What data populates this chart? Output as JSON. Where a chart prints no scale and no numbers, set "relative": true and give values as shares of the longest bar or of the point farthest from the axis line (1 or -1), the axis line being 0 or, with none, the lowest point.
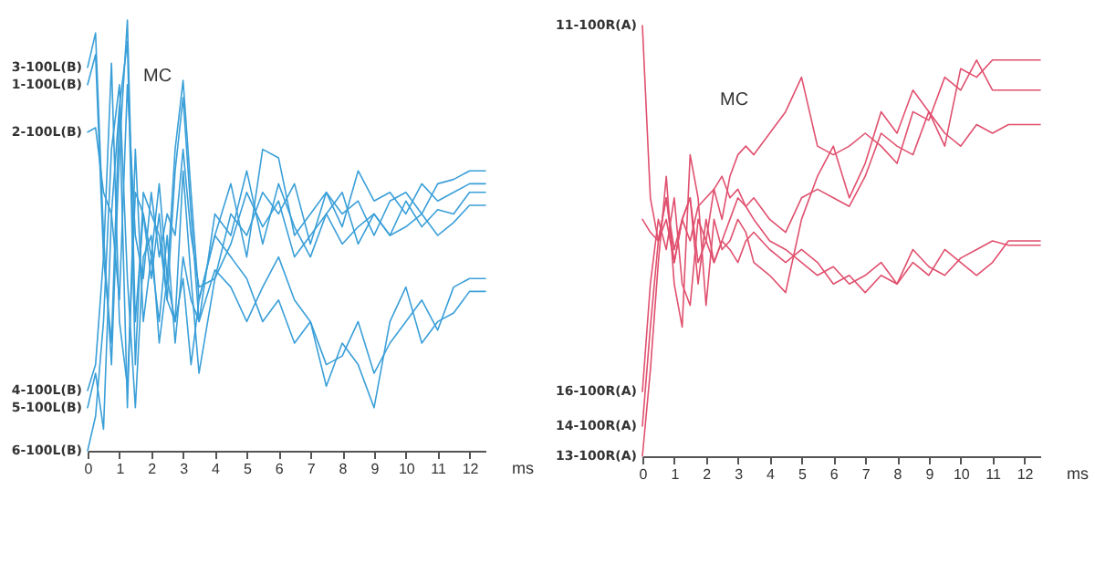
{
  "chart_data": [
    {
      "type": "line",
      "relative": true,
      "xlabel": "ms",
      "xlim": [
        0,
        12.5
      ],
      "xticks": [
        0,
        1,
        2,
        3,
        4,
        5,
        6,
        7,
        8,
        9,
        10,
        11,
        12
      ],
      "grid": false,
      "legend": false,
      "line_style": "solid",
      "annotations": [
        "MC"
      ],
      "x": [
        0,
        0.25,
        0.5,
        0.75,
        1,
        1.25,
        1.5,
        1.75,
        2,
        2.25,
        2.5,
        2.75,
        3,
        3.25,
        3.5,
        4,
        4.5,
        5,
        5.5,
        6,
        6.5,
        7,
        7.5,
        8,
        8.5,
        9,
        9.5,
        10,
        10.5,
        11,
        11.5,
        12,
        12.5
      ],
      "series": [
        {
          "name": "3-100L(B)",
          "color": "#3a9fd8",
          "values": [
            0.89,
            0.97,
            0.5,
            0.2,
            0.7,
            1.0,
            0.3,
            0.55,
            0.45,
            0.62,
            0.4,
            0.7,
            0.86,
            0.6,
            0.35,
            0.5,
            0.62,
            0.45,
            0.7,
            0.68,
            0.5,
            0.55,
            0.6,
            0.52,
            0.65,
            0.58,
            0.6,
            0.55,
            0.62,
            0.58,
            0.6,
            0.62,
            0.62
          ]
        },
        {
          "name": "1-100L(B)",
          "color": "#3a9fd8",
          "values": [
            0.85,
            0.92,
            0.45,
            0.25,
            0.8,
            0.95,
            0.2,
            0.6,
            0.55,
            0.5,
            0.35,
            0.65,
            0.82,
            0.55,
            0.3,
            0.55,
            0.5,
            0.65,
            0.48,
            0.62,
            0.52,
            0.45,
            0.55,
            0.6,
            0.48,
            0.55,
            0.5,
            0.58,
            0.52,
            0.56,
            0.55,
            0.6,
            0.6
          ]
        },
        {
          "name": "2-100L(B)",
          "color": "#3a9fd8",
          "values": [
            0.74,
            0.75,
            0.6,
            0.55,
            0.35,
            0.85,
            0.5,
            0.4,
            0.6,
            0.45,
            0.55,
            0.5,
            0.7,
            0.5,
            0.38,
            0.4,
            0.48,
            0.6,
            0.52,
            0.58,
            0.45,
            0.5,
            0.55,
            0.48,
            0.52,
            0.55,
            0.5,
            0.52,
            0.55,
            0.5,
            0.53,
            0.57,
            0.57
          ]
        },
        {
          "name": "4-100L(B)",
          "color": "#3a9fd8",
          "values": [
            0.14,
            0.2,
            0.45,
            0.9,
            0.3,
            0.15,
            0.6,
            0.55,
            0.4,
            0.55,
            0.35,
            0.3,
            0.4,
            0.2,
            0.35,
            0.5,
            0.45,
            0.4,
            0.3,
            0.35,
            0.25,
            0.3,
            0.2,
            0.22,
            0.3,
            0.18,
            0.25,
            0.3,
            0.35,
            0.28,
            0.38,
            0.4,
            0.4
          ]
        },
        {
          "name": "5-100L(B)",
          "color": "#3a9fd8",
          "values": [
            0.1,
            0.18,
            0.05,
            0.55,
            0.8,
            0.1,
            0.7,
            0.3,
            0.45,
            0.3,
            0.5,
            0.25,
            0.45,
            0.35,
            0.3,
            0.42,
            0.38,
            0.3,
            0.38,
            0.45,
            0.35,
            0.3,
            0.15,
            0.25,
            0.2,
            0.1,
            0.3,
            0.38,
            0.25,
            0.3,
            0.32,
            0.37,
            0.37
          ]
        },
        {
          "name": "6-100L(B)",
          "color": "#3a9fd8",
          "values": [
            0.0,
            0.08,
            0.3,
            0.7,
            0.85,
            0.4,
            0.1,
            0.45,
            0.5,
            0.25,
            0.4,
            0.3,
            0.65,
            0.4,
            0.18,
            0.4,
            0.55,
            0.5,
            0.6,
            0.55,
            0.62,
            0.48,
            0.6,
            0.55,
            0.58,
            0.5,
            0.58,
            0.6,
            0.55,
            0.62,
            0.63,
            0.65,
            0.65
          ]
        }
      ]
    },
    {
      "type": "line",
      "relative": true,
      "xlabel": "ms",
      "xlim": [
        0,
        12.5
      ],
      "xticks": [
        0,
        1,
        2,
        3,
        4,
        5,
        6,
        7,
        8,
        9,
        10,
        11,
        12
      ],
      "grid": false,
      "legend": false,
      "line_style": "solid",
      "annotations": [
        "MC"
      ],
      "x": [
        0,
        0.25,
        0.5,
        0.75,
        1,
        1.25,
        1.5,
        1.75,
        2,
        2.25,
        2.5,
        2.75,
        3,
        3.25,
        3.5,
        4,
        4.5,
        5,
        5.5,
        6,
        6.5,
        7,
        7.5,
        8,
        8.5,
        9,
        9.5,
        10,
        10.5,
        11,
        11.5,
        12,
        12.5
      ],
      "series": [
        {
          "name": "11-100R(A)",
          "color": "#e0506e",
          "values": [
            1.0,
            0.6,
            0.5,
            0.55,
            0.45,
            0.55,
            0.6,
            0.45,
            0.5,
            0.62,
            0.55,
            0.65,
            0.7,
            0.72,
            0.7,
            0.75,
            0.8,
            0.88,
            0.72,
            0.7,
            0.72,
            0.75,
            0.72,
            0.68,
            0.8,
            0.78,
            0.88,
            0.85,
            0.92,
            0.85,
            0.85,
            0.85,
            0.85
          ]
        },
        {
          "name": "16-100R(A)",
          "color": "#e0506e",
          "values": [
            0.15,
            0.4,
            0.55,
            0.48,
            0.6,
            0.4,
            0.35,
            0.55,
            0.5,
            0.45,
            0.5,
            0.48,
            0.45,
            0.5,
            0.52,
            0.48,
            0.45,
            0.48,
            0.45,
            0.4,
            0.42,
            0.38,
            0.42,
            0.4,
            0.45,
            0.42,
            0.48,
            0.45,
            0.42,
            0.45,
            0.5,
            0.5,
            0.5
          ]
        },
        {
          "name": "14-100R(A)",
          "color": "#e0506e",
          "values": [
            0.07,
            0.3,
            0.5,
            0.6,
            0.45,
            0.55,
            0.6,
            0.4,
            0.55,
            0.45,
            0.5,
            0.55,
            0.6,
            0.58,
            0.55,
            0.5,
            0.48,
            0.45,
            0.42,
            0.44,
            0.4,
            0.42,
            0.45,
            0.4,
            0.48,
            0.44,
            0.42,
            0.46,
            0.48,
            0.5,
            0.49,
            0.49,
            0.49
          ]
        },
        {
          "name": "13-100R(A)",
          "color": "#e0506e",
          "values": [
            0.0,
            0.2,
            0.45,
            0.65,
            0.4,
            0.3,
            0.7,
            0.6,
            0.35,
            0.55,
            0.48,
            0.5,
            0.55,
            0.52,
            0.45,
            0.42,
            0.38,
            0.55,
            0.65,
            0.72,
            0.6,
            0.68,
            0.8,
            0.75,
            0.85,
            0.8,
            0.72,
            0.9,
            0.88,
            0.92,
            0.92,
            0.92,
            0.92
          ]
        },
        {
          "color": "#e0506e",
          "values": [
            0.55,
            0.52,
            0.5,
            0.6,
            0.48,
            0.55,
            0.5,
            0.58,
            0.6,
            0.62,
            0.65,
            0.6,
            0.62,
            0.58,
            0.6,
            0.55,
            0.52,
            0.6,
            0.62,
            0.6,
            0.58,
            0.65,
            0.75,
            0.72,
            0.7,
            0.8,
            0.75,
            0.72,
            0.77,
            0.75,
            0.77,
            0.77,
            0.77
          ]
        }
      ]
    }
  ]
}
